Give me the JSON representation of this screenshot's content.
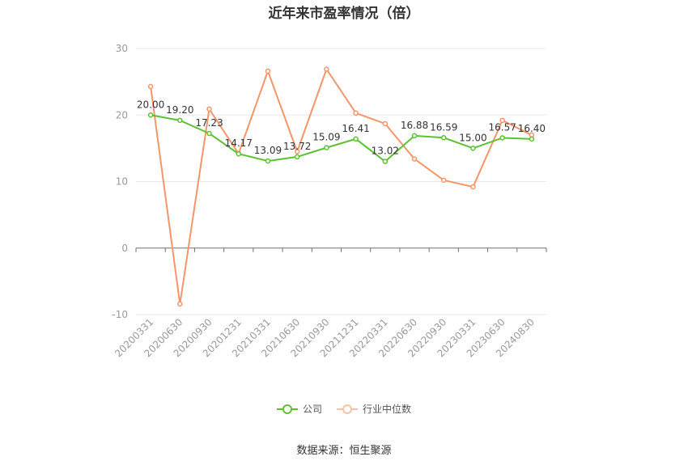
{
  "chart_data": {
    "type": "line",
    "title": "近年来市盈率情况（倍）",
    "categories": [
      "20200331",
      "20200630",
      "20200930",
      "20201231",
      "20210331",
      "20210630",
      "20210930",
      "20211231",
      "20220331",
      "20220630",
      "20220930",
      "20230331",
      "20230630",
      "20240830"
    ],
    "series": [
      {
        "name": "公司",
        "color": "#5cc232",
        "values": [
          20.0,
          19.2,
          17.23,
          14.17,
          13.09,
          13.72,
          15.09,
          16.41,
          13.02,
          16.88,
          16.59,
          15.0,
          16.57,
          16.4
        ],
        "labels": [
          "20.00",
          "19.20",
          "17.23",
          "14.17",
          "13.09",
          "13.72",
          "15.09",
          "16.41",
          "13.02",
          "16.88",
          "16.59",
          "15.00",
          "16.57",
          "16.40"
        ]
      },
      {
        "name": "行业中位数",
        "color": "#f4956a",
        "values": [
          24.3,
          -8.4,
          20.9,
          14.2,
          26.6,
          14.5,
          26.9,
          20.3,
          18.7,
          13.4,
          10.2,
          9.2,
          19.2,
          17.0
        ]
      }
    ],
    "ylim": [
      -10,
      30
    ],
    "yticks": [
      -10,
      0,
      10,
      20,
      30
    ],
    "legend": "bottom",
    "grid": true
  },
  "source": "数据来源：恒生聚源"
}
